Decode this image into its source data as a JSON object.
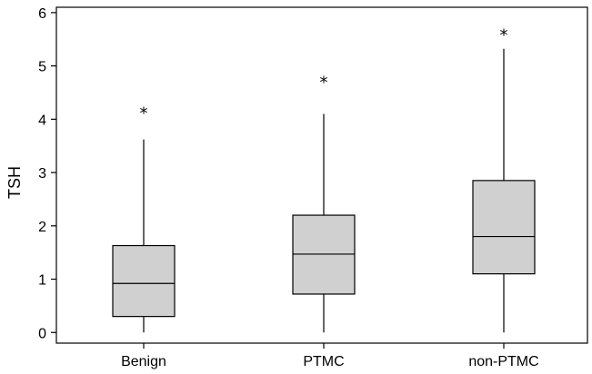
{
  "chart_data": {
    "type": "boxplot",
    "ylabel": "TSH",
    "ylim": [
      -0.2,
      6.1
    ],
    "yticks": [
      "0",
      "1",
      "2",
      "3",
      "4",
      "5",
      "6"
    ],
    "categories": [
      "Benign",
      "PTMC",
      "non-PTMC"
    ],
    "boxes": [
      {
        "category": "Benign",
        "min": 0,
        "q1": 0.3,
        "median": 0.92,
        "q3": 1.63,
        "max": 3.62,
        "outliers": [
          4.22
        ]
      },
      {
        "category": "PTMC",
        "min": 0,
        "q1": 0.72,
        "median": 1.47,
        "q3": 2.2,
        "max": 4.1,
        "outliers": [
          4.8
        ]
      },
      {
        "category": "non-PTMC",
        "min": 0,
        "q1": 1.1,
        "median": 1.8,
        "q3": 2.85,
        "max": 5.32,
        "outliers": [
          5.68
        ]
      }
    ],
    "outlier_marker": "*",
    "colors": {
      "box_fill": "#d0d0d0",
      "stroke": "#000000"
    }
  }
}
